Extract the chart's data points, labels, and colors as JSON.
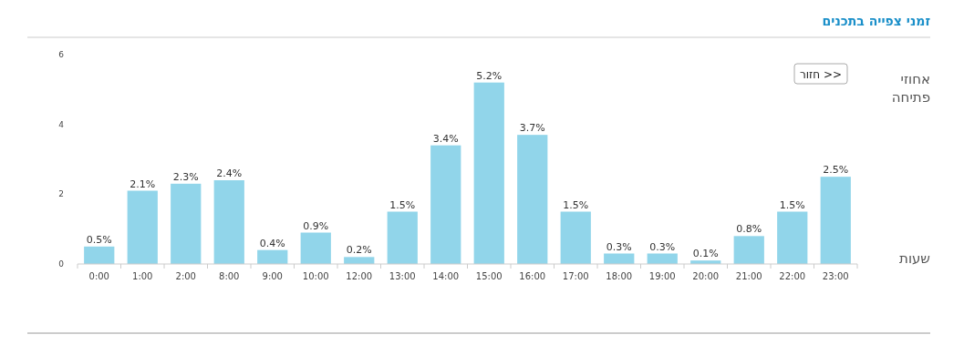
{
  "chart_data": {
    "type": "bar",
    "title": "זמני צפייה בתכנים",
    "ylabel": "אחוזי פתיחה",
    "xlabel": "שעות",
    "annotations": [
      "חזור >>"
    ],
    "categories": [
      "0:00",
      "1:00",
      "2:00",
      "8:00",
      "9:00",
      "10:00",
      "12:00",
      "13:00",
      "14:00",
      "15:00",
      "16:00",
      "17:00",
      "18:00",
      "19:00",
      "20:00",
      "21:00",
      "22:00",
      "23:00"
    ],
    "values": [
      0.5,
      2.1,
      2.3,
      2.4,
      0.4,
      0.9,
      0.2,
      1.5,
      3.4,
      5.2,
      3.7,
      1.5,
      0.3,
      0.3,
      0.1,
      0.8,
      1.5,
      2.5
    ],
    "value_labels": [
      "0.5%",
      "2.1%",
      "2.3%",
      "2.4%",
      "0.4%",
      "0.9%",
      "0.2%",
      "1.5%",
      "3.4%",
      "5.2%",
      "3.7%",
      "1.5%",
      "0.3%",
      "0.3%",
      "0.1%",
      "0.8%",
      "1.5%",
      "2.5%"
    ],
    "color": "#91d5ea",
    "ylim": [
      0,
      6
    ],
    "yticks": [
      0,
      2,
      4,
      6
    ],
    "grid": false
  }
}
